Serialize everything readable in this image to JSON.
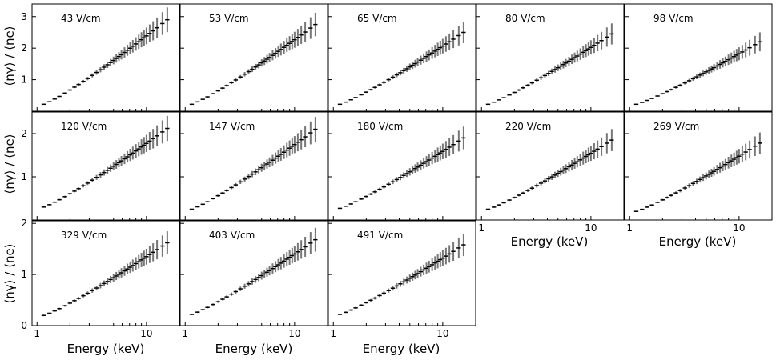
{
  "chart_data": {
    "type": "scatter",
    "title": "",
    "xlabel": "Energy (keV)",
    "ylabel": "⟨nγ⟩ / ⟨ne⟩",
    "xscale": "log",
    "xlim": [
      0.9,
      20
    ],
    "x_tick_labels": [
      "1",
      "10"
    ],
    "rows": [
      {
        "ylim": [
          0,
          3.4
        ],
        "yticks": [
          "1",
          "2",
          "3"
        ]
      },
      {
        "ylim": [
          0,
          2.5
        ],
        "yticks": [
          "1",
          "2"
        ]
      },
      {
        "ylim": [
          0,
          2.05
        ],
        "yticks": [
          "0",
          "1",
          "2"
        ]
      }
    ],
    "energies": [
      1.15,
      1.3,
      1.45,
      1.6,
      1.8,
      2.0,
      2.2,
      2.4,
      2.65,
      2.9,
      3.2,
      3.5,
      3.8,
      4.1,
      4.4,
      4.7,
      5.0,
      5.3,
      5.6,
      5.9,
      6.3,
      6.7,
      7.1,
      7.5,
      8.0,
      8.5,
      9.0,
      9.5,
      10.0,
      10.7,
      11.5,
      12.5,
      14.0,
      15.5
    ],
    "panels": [
      {
        "field": "43 V/cm",
        "start": 0.22,
        "end": 2.9
      },
      {
        "field": "53 V/cm",
        "start": 0.22,
        "end": 2.75
      },
      {
        "field": "65 V/cm",
        "start": 0.22,
        "end": 2.5
      },
      {
        "field": "80 V/cm",
        "start": 0.22,
        "end": 2.45
      },
      {
        "field": "98 V/cm",
        "start": 0.22,
        "end": 2.2
      },
      {
        "field": "120 V/cm",
        "start": 0.3,
        "end": 2.12
      },
      {
        "field": "147 V/cm",
        "start": 0.25,
        "end": 2.1
      },
      {
        "field": "180 V/cm",
        "start": 0.27,
        "end": 1.9
      },
      {
        "field": "220 V/cm",
        "start": 0.25,
        "end": 1.85
      },
      {
        "field": "269 V/cm",
        "start": 0.2,
        "end": 1.78
      },
      {
        "field": "329 V/cm",
        "start": 0.2,
        "end": 1.62
      },
      {
        "field": "403 V/cm",
        "start": 0.22,
        "end": 1.68
      },
      {
        "field": "491 V/cm",
        "start": 0.22,
        "end": 1.58
      }
    ]
  }
}
